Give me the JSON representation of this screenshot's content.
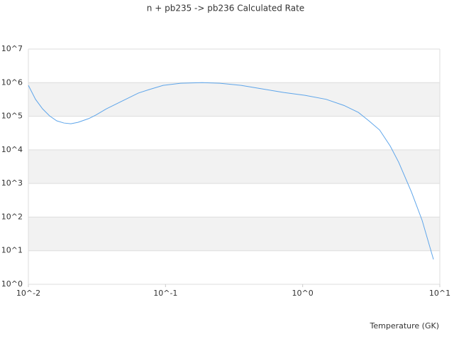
{
  "chart_data": {
    "type": "line",
    "title": "n + pb235 -> pb236 Calculated Rate",
    "x_label": "Temperature (GK)",
    "x": [
      0.01,
      0.01127,
      0.01269,
      0.01429,
      0.0161,
      0.01815,
      0.0204,
      0.023,
      0.0275,
      0.031,
      0.037,
      0.0471,
      0.0634,
      0.0757,
      0.096,
      0.129,
      0.185,
      0.249,
      0.356,
      0.509,
      0.728,
      1.04,
      1.48,
      2.0,
      2.55,
      3.04,
      3.64,
      4.35,
      5.01,
      6.21,
      7.43,
      8.99
    ],
    "series": [
      {
        "color": "#5ea5ea",
        "values": [
          830000,
          320000,
          166000,
          102000,
          73000,
          63000,
          60000,
          66000,
          85000,
          108000,
          166000,
          270000,
          490000,
          620000,
          830000,
          960000,
          1000000,
          960000,
          830000,
          650000,
          510000,
          420000,
          320000,
          210000,
          130000,
          73000,
          39000,
          13000,
          4300,
          560,
          80,
          5.5
        ]
      }
    ],
    "xlim": [
      0.01,
      10
    ],
    "ylim": [
      1,
      10000000
    ],
    "xticks": [
      {
        "value": 0.01,
        "label": "10^-2"
      },
      {
        "value": 0.1,
        "label": "10^-1"
      },
      {
        "value": 1,
        "label": "10^0"
      },
      {
        "value": 10,
        "label": "10^1"
      }
    ],
    "yticks": [
      {
        "value": 1,
        "label": "10^0"
      },
      {
        "value": 10,
        "label": "10^1"
      },
      {
        "value": 100,
        "label": "10^2"
      },
      {
        "value": 1000,
        "label": "10^3"
      },
      {
        "value": 10000,
        "label": "10^4"
      },
      {
        "value": 100000,
        "label": "10^5"
      },
      {
        "value": 1000000,
        "label": "10^6"
      },
      {
        "value": 10000000,
        "label": "10^7"
      }
    ],
    "log_x": true,
    "log_y": true,
    "grid": true,
    "band_color": "#f2f2f2"
  }
}
